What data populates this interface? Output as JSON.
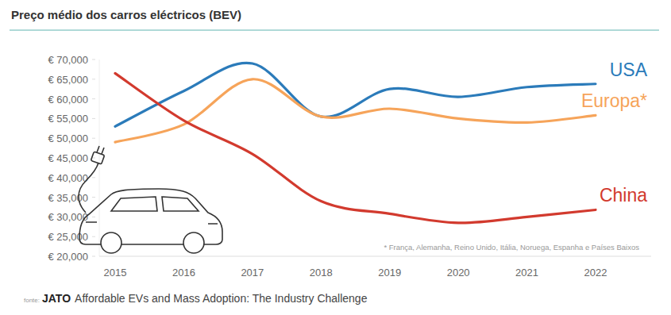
{
  "chart_data": {
    "type": "line",
    "title": "Preço médio dos carros eléctricos (BEV)",
    "categories": [
      "2015",
      "2016",
      "2017",
      "2018",
      "2019",
      "2020",
      "2021",
      "2022"
    ],
    "series": [
      {
        "name": "USA",
        "color": "#2b7bba",
        "values": [
          53000,
          62000,
          69000,
          55500,
          62500,
          60500,
          63000,
          63800
        ]
      },
      {
        "name": "Europa*",
        "color": "#f6a45a",
        "values": [
          49000,
          53500,
          65000,
          55500,
          57500,
          55000,
          54000,
          55800
        ]
      },
      {
        "name": "China",
        "color": "#d23a2e",
        "values": [
          66500,
          54500,
          46000,
          34000,
          30800,
          28500,
          30000,
          31800
        ]
      }
    ],
    "ylim": [
      20000,
      70000
    ],
    "yticks": [
      {
        "value": 20000,
        "label": "€ 20,000"
      },
      {
        "value": 25000,
        "label": "€ 25,000"
      },
      {
        "value": 30000,
        "label": "€ 30,000"
      },
      {
        "value": 35000,
        "label": "€ 35,000"
      },
      {
        "value": 40000,
        "label": "€ 40,000"
      },
      {
        "value": 45000,
        "label": "€ 45,000"
      },
      {
        "value": 50000,
        "label": "€ 50,000"
      },
      {
        "value": 55000,
        "label": "€ 55,000"
      },
      {
        "value": 60000,
        "label": "€ 60,000"
      },
      {
        "value": 65000,
        "label": "€ 65,000"
      },
      {
        "value": 70000,
        "label": "€ 70,000"
      }
    ],
    "grid": false,
    "footnote": "* França, Alemanha, Reino Unido, Itália, Noruega, Espanha e Países Baixos",
    "source_label": "fonte:",
    "source_org": "JATO",
    "source_title": "Affordable EVs and Mass Adoption: The Industry Challenge"
  }
}
